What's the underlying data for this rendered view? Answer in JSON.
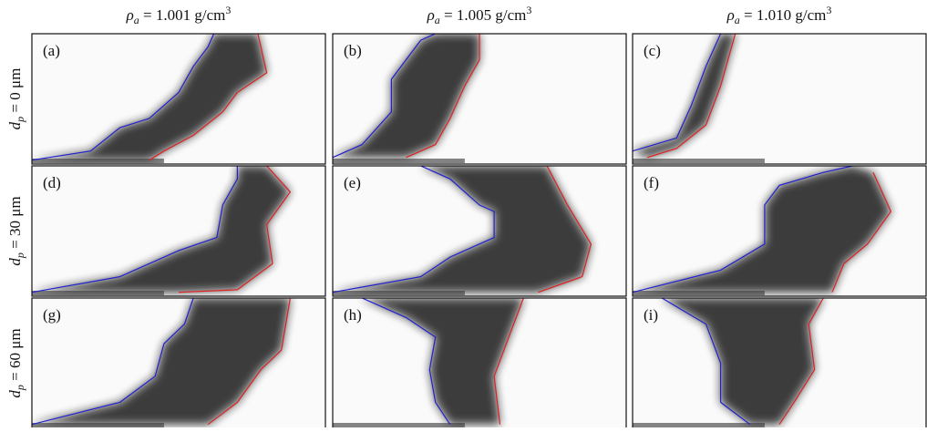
{
  "columns": [
    {
      "symbol": "ρ",
      "sub": "a",
      "text": " = 1.001 g/cm",
      "sup": "3"
    },
    {
      "symbol": "ρ",
      "sub": "a",
      "text": " = 1.005 g/cm",
      "sup": "3"
    },
    {
      "symbol": "ρ",
      "sub": "a",
      "text": " = 1.010 g/cm",
      "sup": "3"
    }
  ],
  "rows": [
    {
      "symbol": "d",
      "sub": "p",
      "text": " = 0 μm"
    },
    {
      "symbol": "d",
      "sub": "p",
      "text": " = 30 μm"
    },
    {
      "symbol": "d",
      "sub": "p",
      "text": " = 60 μm"
    }
  ],
  "panels": [
    "(a)",
    "(b)",
    "(c)",
    "(d)",
    "(e)",
    "(f)",
    "(g)",
    "(h)",
    "(i)"
  ]
}
